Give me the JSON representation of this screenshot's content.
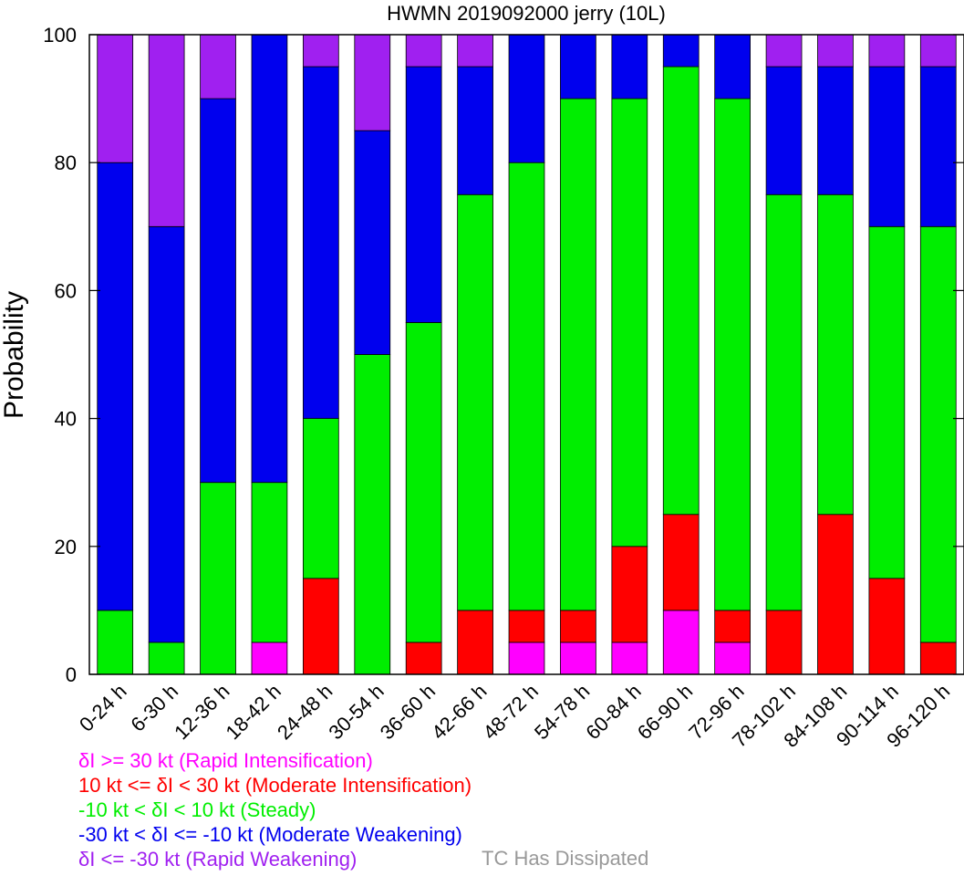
{
  "chart_data": {
    "type": "bar",
    "stacked": true,
    "title": "HWMN 2019092000 jerry (10L)",
    "xlabel": "",
    "ylabel": "Probability",
    "ylim": [
      0,
      100
    ],
    "yticks": [
      0,
      20,
      40,
      60,
      80,
      100
    ],
    "categories": [
      "0-24 h",
      "6-30 h",
      "12-36 h",
      "18-42 h",
      "24-48 h",
      "30-54 h",
      "36-60 h",
      "42-66 h",
      "48-72 h",
      "54-78 h",
      "60-84 h",
      "66-90 h",
      "72-96 h",
      "78-102 h",
      "84-108 h",
      "90-114 h",
      "96-120 h"
    ],
    "series": [
      {
        "name": "δI >= 30 kt (Rapid Intensification)",
        "color": "#ff00ff",
        "values": [
          0,
          0,
          0,
          5,
          0,
          0,
          0,
          0,
          5,
          5,
          5,
          10,
          5,
          0,
          0,
          0,
          0
        ]
      },
      {
        "name": "10 kt <= δI < 30 kt (Moderate Intensification)",
        "color": "#ff0000",
        "values": [
          0,
          0,
          0,
          0,
          15,
          0,
          5,
          10,
          5,
          5,
          15,
          15,
          5,
          10,
          25,
          15,
          5
        ]
      },
      {
        "name": "-10 kt < δI < 10 kt (Steady)",
        "color": "#00ee00",
        "values": [
          10,
          5,
          30,
          25,
          25,
          50,
          50,
          65,
          70,
          80,
          70,
          70,
          80,
          65,
          50,
          55,
          65
        ]
      },
      {
        "name": "-30 kt < δI <= -10 kt (Moderate Weakening)",
        "color": "#0000ee",
        "values": [
          70,
          65,
          60,
          70,
          55,
          35,
          40,
          20,
          20,
          10,
          10,
          5,
          10,
          20,
          20,
          25,
          25
        ]
      },
      {
        "name": "δI <= -30 kt (Rapid Weakening)",
        "color": "#a020f0",
        "values": [
          20,
          30,
          10,
          0,
          5,
          15,
          5,
          5,
          0,
          0,
          0,
          0,
          0,
          5,
          5,
          5,
          5
        ]
      }
    ],
    "legend": [
      {
        "text": "δI >= 30 kt (Rapid Intensification)",
        "color": "#ff00ff"
      },
      {
        "text": "10 kt <= δI < 30 kt (Moderate Intensification)",
        "color": "#ff0000"
      },
      {
        "text": "-10 kt < δI < 10 kt (Steady)",
        "color": "#00ee00"
      },
      {
        "text": "-30 kt < δI <= -10 kt (Moderate Weakening)",
        "color": "#0000ee"
      },
      {
        "text": "δI <= -30 kt (Rapid Weakening)",
        "color": "#a020f0"
      }
    ],
    "dissipated_label": "TC Has Dissipated",
    "dissipated_color": "#999999",
    "legend_placement": "bottom-left",
    "grid": false
  }
}
